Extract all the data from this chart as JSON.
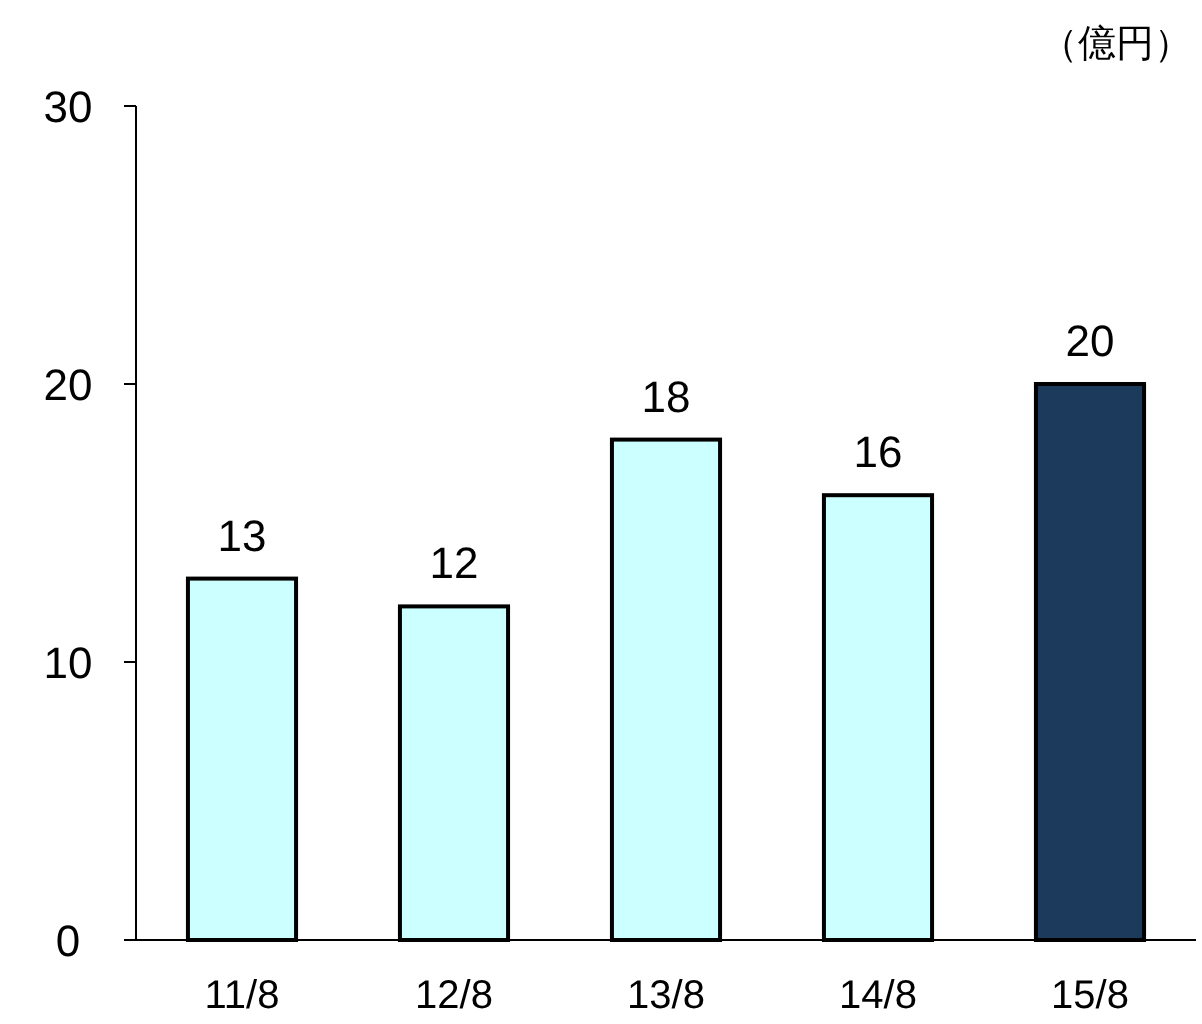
{
  "chart_data": {
    "type": "bar",
    "ylabel": "（億円）",
    "categories": [
      "11/8",
      "12/8",
      "13/8",
      "14/8",
      "15/8"
    ],
    "values": [
      13,
      12,
      18,
      16,
      20
    ],
    "colors": [
      "#ccffff",
      "#ccffff",
      "#ccffff",
      "#ccffff",
      "#1b3a5c"
    ],
    "ylim": [
      0,
      30
    ],
    "yticks": [
      0,
      10,
      20,
      30
    ],
    "grid": false,
    "data_labels": true
  }
}
